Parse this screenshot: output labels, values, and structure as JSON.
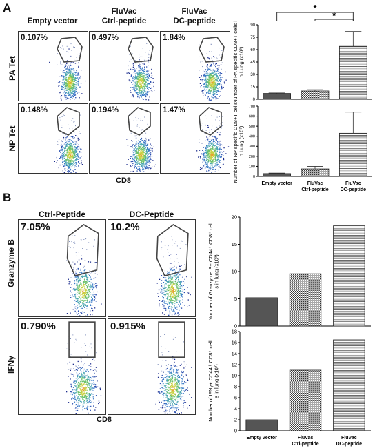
{
  "panelA": {
    "letter": "A",
    "columns": [
      "Empty vector",
      "FluVac\nCtrl-peptide",
      "FluVac\nDC-peptide"
    ],
    "rows": [
      "PA Tet",
      "NP Tet"
    ],
    "pct": [
      [
        "0.107%",
        "0.497%",
        "1.84%"
      ],
      [
        "0.148%",
        "0.194%",
        "1.47%"
      ]
    ],
    "xlabel": "CD8",
    "sig": [
      "*",
      "*"
    ]
  },
  "panelB": {
    "letter": "B",
    "columns": [
      "Ctrl-Peptide",
      "DC-Peptide"
    ],
    "rows": [
      "Granzyme B",
      "IFNγ"
    ],
    "pct": [
      [
        "7.05%",
        "10.2%"
      ],
      [
        "0.790%",
        "0.915%"
      ]
    ],
    "xlabel": "CD8"
  },
  "chart_data": [
    {
      "type": "bar",
      "categories": [
        "Empty vector",
        "FluVac Ctrl-peptide",
        "FluVac DC-peptide"
      ],
      "values": [
        7,
        10,
        64
      ],
      "errors": [
        0.6,
        1.5,
        18
      ],
      "ylim": [
        0,
        90
      ],
      "yticks": [
        "0",
        "15",
        "30",
        "45",
        "60",
        "75",
        "90"
      ],
      "ylabel": "Number of PA specific CD8+T cells in Lung (x10³)",
      "significance": [
        "*",
        "*"
      ]
    },
    {
      "type": "bar",
      "categories": [
        "Empty vector",
        "FluVac Ctrl-peptide",
        "FluVac DC-peptide"
      ],
      "values": [
        28,
        75,
        430
      ],
      "errors": [
        5,
        25,
        210
      ],
      "ylim": [
        0,
        700
      ],
      "yticks": [
        "0",
        "100",
        "200",
        "300",
        "400",
        "500",
        "600",
        "700"
      ],
      "ylabel": "Number of NP specific CD8+T cells in Lung (x10³)",
      "xticklabels": [
        "Empty vector",
        "FluVac\nCtrl-peptide",
        "FluVac\nDC-peptide"
      ]
    },
    {
      "type": "bar",
      "categories": [
        "Empty vector",
        "FluVac Ctrl-peptide",
        "FluVac DC-peptide"
      ],
      "values": [
        5.2,
        9.6,
        18.4
      ],
      "ylim": [
        0,
        20
      ],
      "yticks": [
        "0",
        "5",
        "10",
        "15",
        "20"
      ],
      "ylabel": "Number of Granzyme B+ CD44⁺ CD8⁺ cells in lung (x10³)"
    },
    {
      "type": "bar",
      "categories": [
        "Empty vector",
        "FluVac Ctrl-peptide",
        "FluVac DC-peptide"
      ],
      "values": [
        2,
        11,
        16.5
      ],
      "ylim": [
        0,
        18
      ],
      "yticks": [
        "0",
        "2",
        "4",
        "6",
        "8",
        "10",
        "12",
        "14",
        "16",
        "18"
      ],
      "ylabel": "Number of IFNγ+ CD44ᴴᴵ CD8⁺ cells in lung (x10³)",
      "xticklabels": [
        "Empty vector",
        "FluVac\nCtrl-peptide",
        "FluVac\nDC-peptide"
      ]
    }
  ]
}
